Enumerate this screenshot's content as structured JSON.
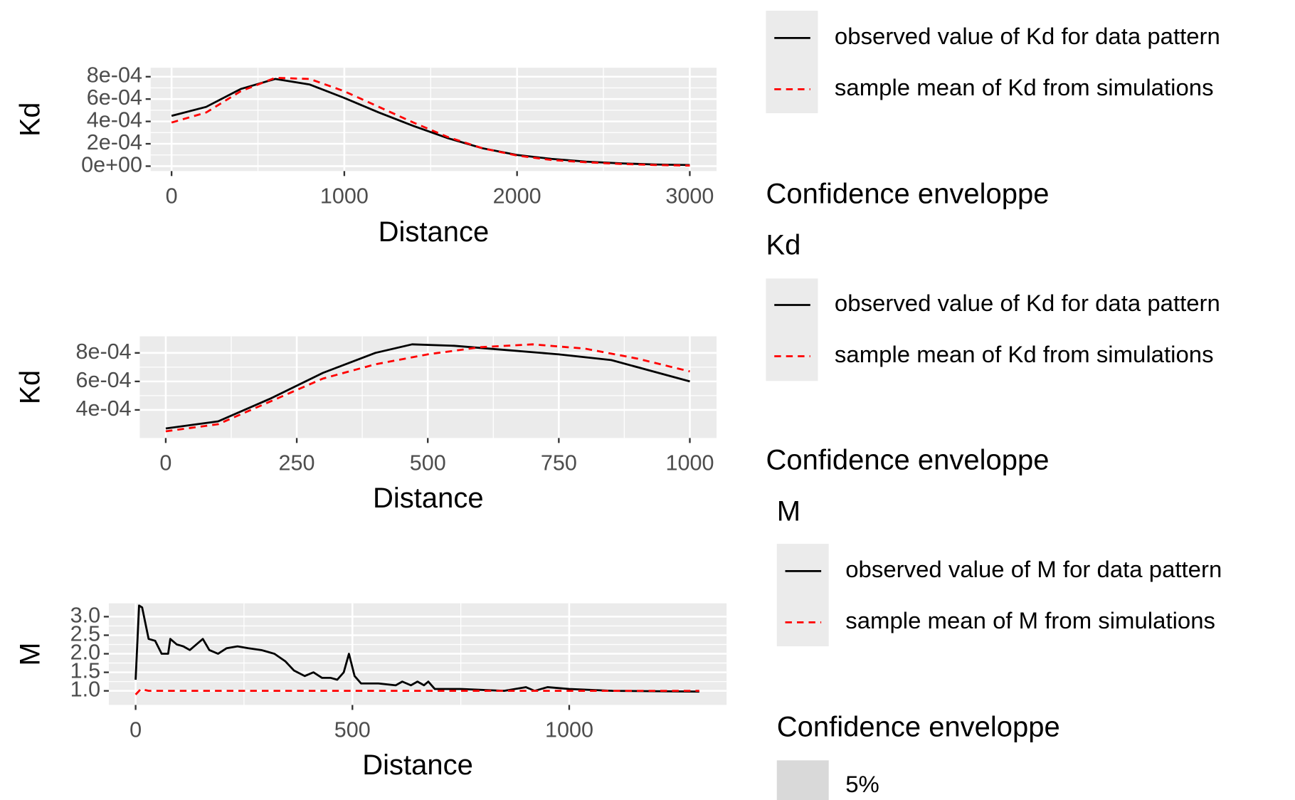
{
  "chart_data": [
    {
      "type": "line",
      "xlabel": "Distance",
      "ylabel": "Kd",
      "xlim": [
        -121,
        3155
      ],
      "xticks": [
        0,
        1000,
        2000,
        3000
      ],
      "ylim": [
        -4.4e-05,
        0.00088
      ],
      "yticks": [
        {
          "value": 0,
          "label": "0e+00"
        },
        {
          "value": 0.0002,
          "label": "2e-04"
        },
        {
          "value": 0.0004,
          "label": "4e-04"
        },
        {
          "value": 0.0006,
          "label": "6e-04"
        },
        {
          "value": 0.0008,
          "label": "8e-04"
        }
      ],
      "grid": true,
      "series": [
        {
          "name": "observed value of Kd for data pattern",
          "color": "#000000",
          "linestyle": "solid",
          "x": [
            0,
            200,
            400,
            600,
            800,
            1000,
            1200,
            1400,
            1600,
            1800,
            2000,
            2200,
            2400,
            2600,
            2800,
            3000
          ],
          "values": [
            0.00045,
            0.00053,
            0.00069,
            0.00078,
            0.00073,
            0.00061,
            0.00048,
            0.00036,
            0.00025,
            0.00016,
            0.0001,
            6.5e-05,
            4e-05,
            2.5e-05,
            1.5e-05,
            1e-05
          ]
        },
        {
          "name": "sample mean of Kd from simulations",
          "color": "#ff0000",
          "linestyle": "dashed",
          "x": [
            0,
            200,
            400,
            600,
            800,
            1000,
            1200,
            1400,
            1600,
            1800,
            2000,
            2200,
            2400,
            2600,
            2800,
            3000
          ],
          "values": [
            0.00039,
            0.00048,
            0.00067,
            0.00079,
            0.00078,
            0.00067,
            0.00053,
            0.00039,
            0.00026,
            0.00016,
            9.5e-05,
            5.5e-05,
            3.5e-05,
            2e-05,
            1e-05,
            5e-06
          ]
        }
      ],
      "envelope_title": "Confidence enveloppe"
    },
    {
      "type": "line",
      "xlabel": "Distance",
      "ylabel": "Kd",
      "legend_title": "Kd",
      "xlim": [
        -49.5,
        1051
      ],
      "xticks": [
        0,
        250,
        500,
        750,
        1000
      ],
      "ylim": [
        0.000203,
        0.000916
      ],
      "yticks": [
        {
          "value": 0.0004,
          "label": "4e-04"
        },
        {
          "value": 0.0006,
          "label": "6e-04"
        },
        {
          "value": 0.0008,
          "label": "8e-04"
        }
      ],
      "grid": true,
      "series": [
        {
          "name": "observed value of Kd for data pattern",
          "color": "#000000",
          "linestyle": "solid",
          "x": [
            0,
            100,
            200,
            300,
            400,
            470,
            550,
            650,
            750,
            850,
            950,
            1000
          ],
          "values": [
            0.00027,
            0.00032,
            0.00048,
            0.00066,
            0.0008,
            0.00086,
            0.00085,
            0.00082,
            0.00079,
            0.00075,
            0.00065,
            0.0006
          ]
        },
        {
          "name": "sample mean of Kd from simulations",
          "color": "#ff0000",
          "linestyle": "dashed",
          "x": [
            0,
            100,
            200,
            300,
            400,
            500,
            600,
            700,
            800,
            900,
            1000
          ],
          "values": [
            0.00025,
            0.0003,
            0.00046,
            0.00062,
            0.00072,
            0.00079,
            0.00084,
            0.00086,
            0.00083,
            0.00076,
            0.00067
          ]
        }
      ],
      "envelope_title": "Confidence enveloppe"
    },
    {
      "type": "line",
      "xlabel": "Distance",
      "ylabel": "M",
      "legend_title": "M",
      "xlim": [
        -61.8,
        1363
      ],
      "xticks": [
        0,
        500,
        1000
      ],
      "ylim": [
        0.62,
        3.36
      ],
      "yticks": [
        {
          "value": 1,
          "label": "1.0"
        },
        1.5,
        {
          "value": 2,
          "label": "2.0"
        },
        2.5,
        {
          "value": 3,
          "label": "3.0"
        }
      ],
      "grid": true,
      "series": [
        {
          "name": "observed value of M for data pattern",
          "color": "#000000",
          "linestyle": "solid",
          "x": [
            0,
            8,
            15,
            30,
            45,
            60,
            75,
            80,
            95,
            110,
            125,
            140,
            155,
            170,
            190,
            210,
            235,
            260,
            290,
            320,
            345,
            365,
            390,
            410,
            430,
            450,
            465,
            480,
            492,
            505,
            520,
            560,
            600,
            615,
            635,
            650,
            665,
            675,
            690,
            750,
            850,
            900,
            920,
            950,
            1000,
            1100,
            1300
          ],
          "values": [
            1.3,
            3.3,
            3.25,
            2.4,
            2.35,
            2.0,
            2.0,
            2.4,
            2.25,
            2.2,
            2.1,
            2.25,
            2.4,
            2.1,
            2.0,
            2.15,
            2.2,
            2.15,
            2.1,
            2.0,
            1.8,
            1.55,
            1.4,
            1.5,
            1.35,
            1.35,
            1.3,
            1.5,
            2.0,
            1.4,
            1.2,
            1.2,
            1.15,
            1.25,
            1.15,
            1.25,
            1.15,
            1.25,
            1.05,
            1.05,
            1.0,
            1.1,
            1.0,
            1.1,
            1.05,
            1.0,
            0.98
          ]
        },
        {
          "name": "sample mean of M from simulations",
          "color": "#ff0000",
          "linestyle": "dashed",
          "x": [
            0,
            12,
            30,
            1300
          ],
          "values": [
            0.9,
            1.05,
            1.0,
            1.0
          ]
        }
      ],
      "envelope_title": "Confidence enveloppe",
      "envelope_label": "5%"
    }
  ]
}
